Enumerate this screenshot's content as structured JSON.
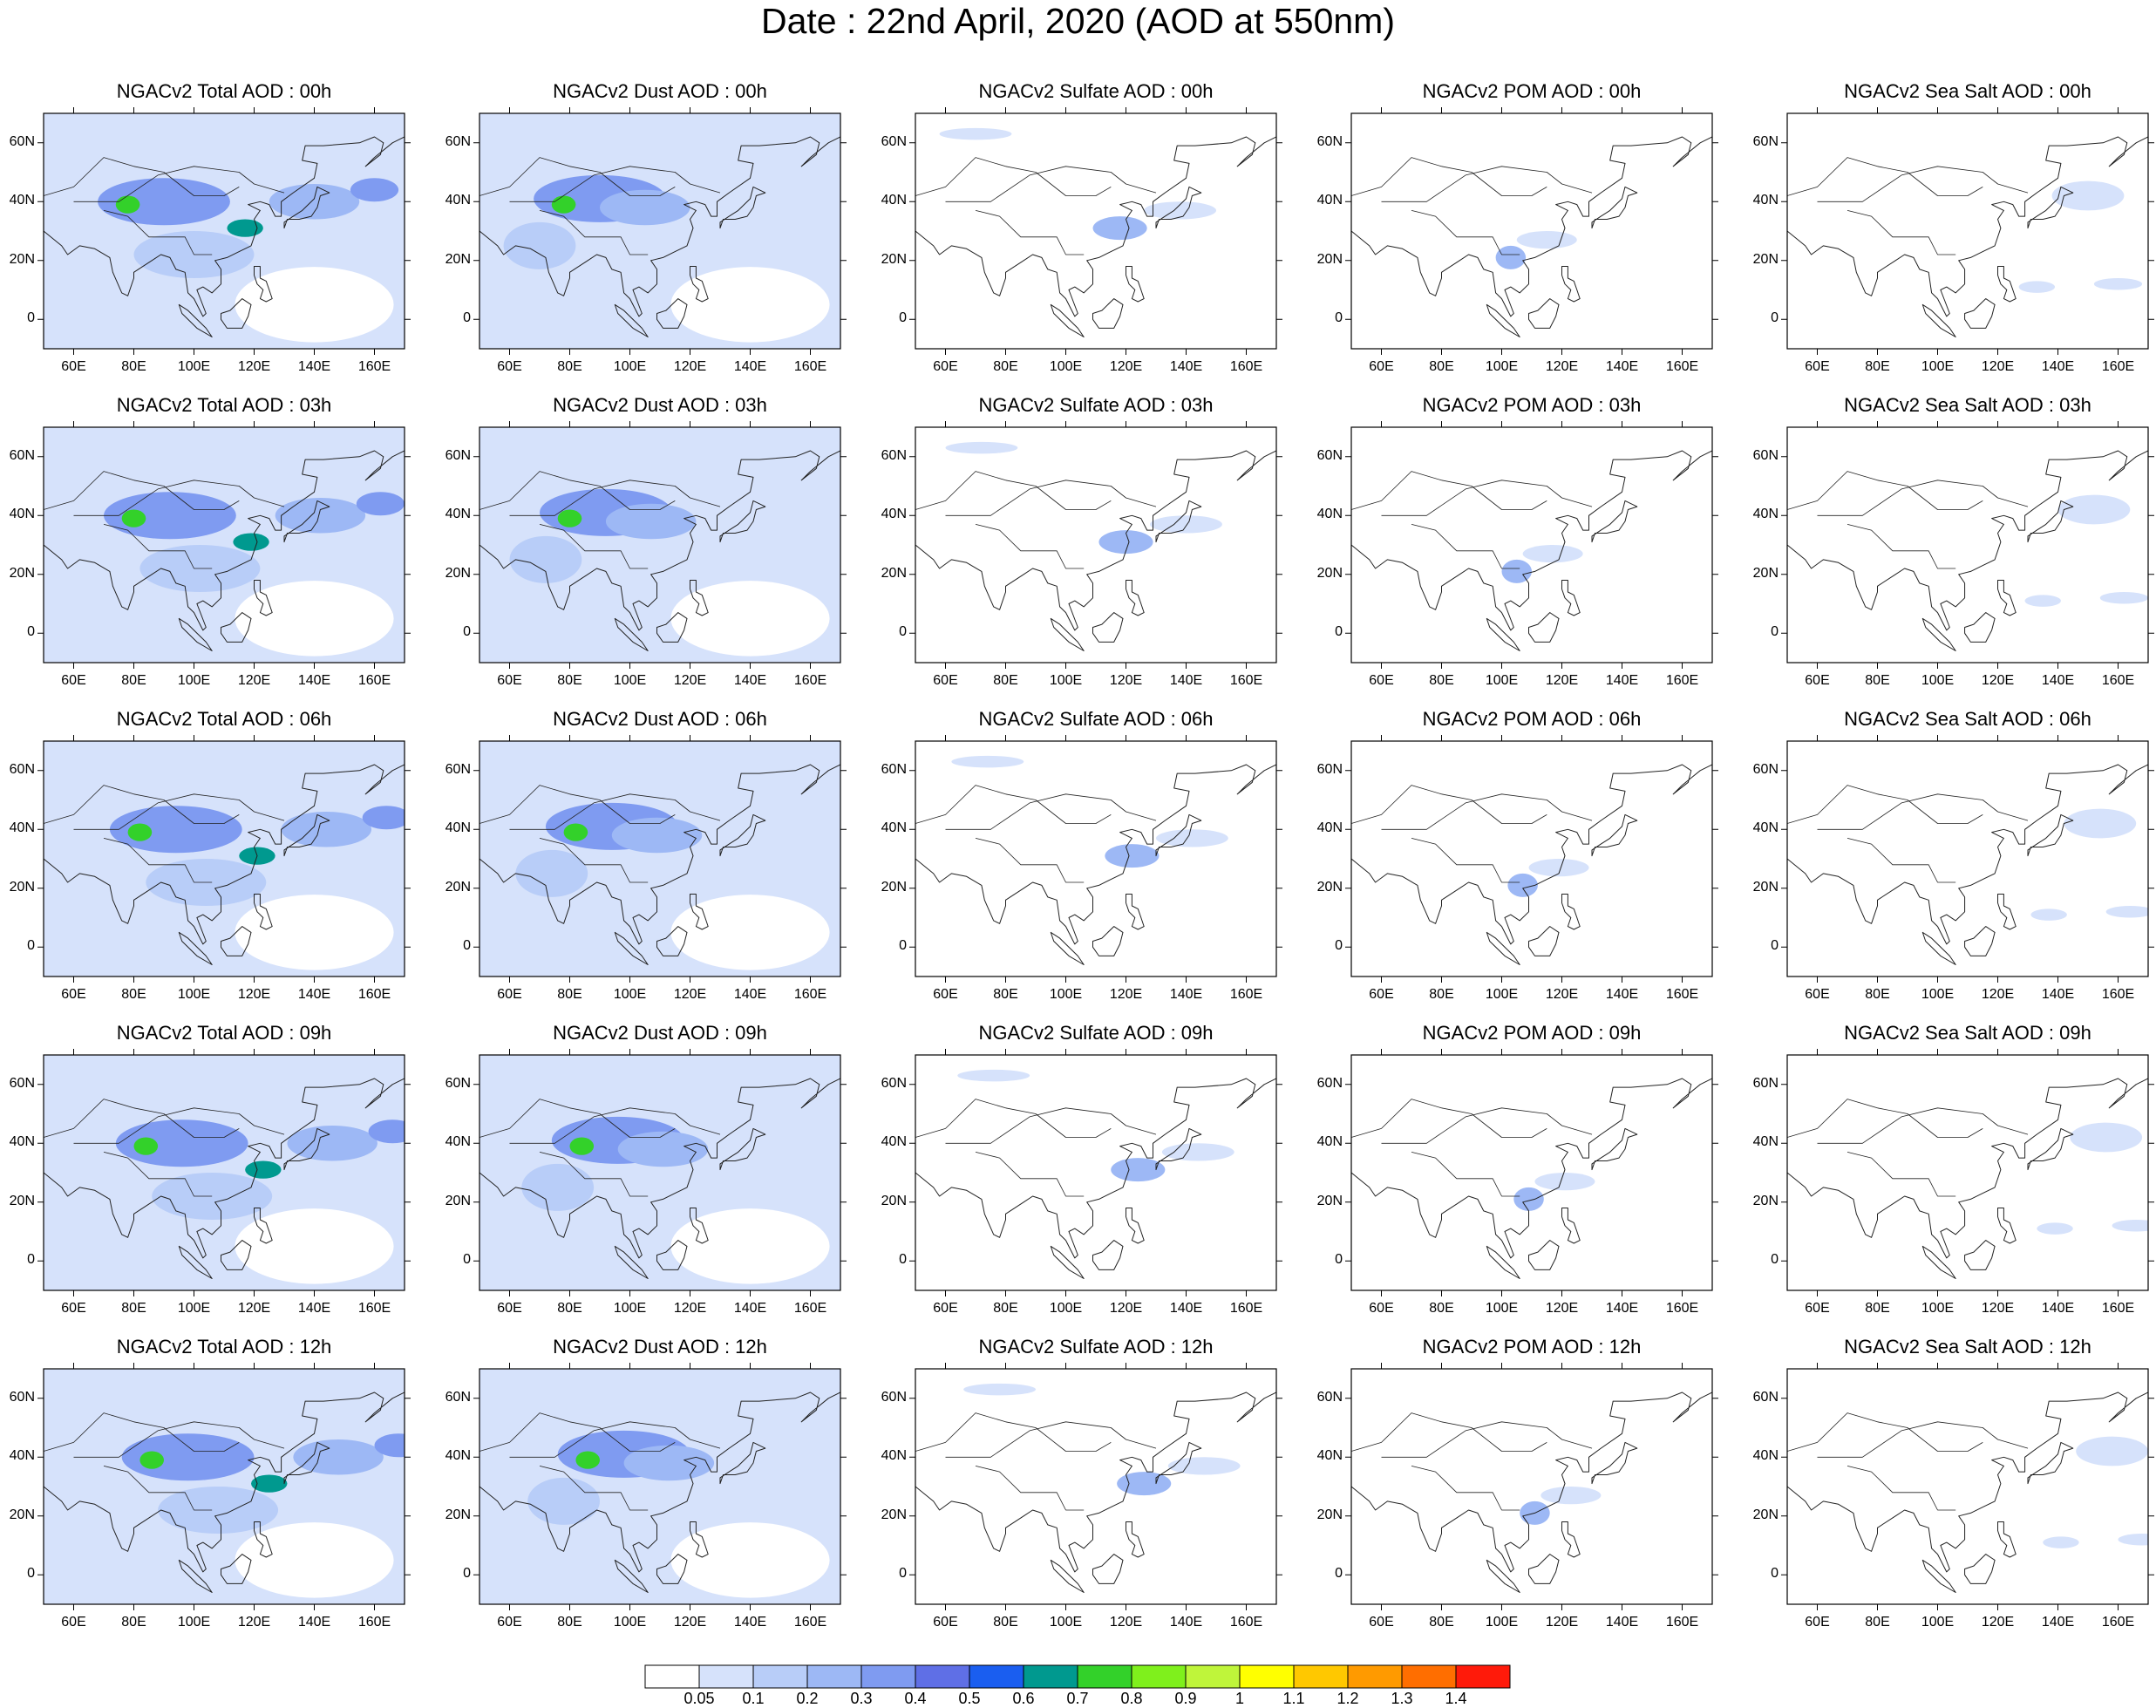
{
  "title": "Date : 22nd April, 2020 (AOD at 550nm)",
  "columns": [
    "Total",
    "Dust",
    "Sulfate",
    "POM",
    "Sea Salt"
  ],
  "rows": [
    "00h",
    "03h",
    "06h",
    "09h",
    "12h"
  ],
  "panel_titles": [
    [
      "NGACv2 Total AOD : 00h",
      "NGACv2 Dust AOD : 00h",
      "NGACv2 Sulfate AOD : 00h",
      "NGACv2 POM AOD : 00h",
      "NGACv2 Sea Salt AOD : 00h"
    ],
    [
      "NGACv2 Total AOD : 03h",
      "NGACv2 Dust AOD : 03h",
      "NGACv2 Sulfate AOD : 03h",
      "NGACv2 POM AOD : 03h",
      "NGACv2 Sea Salt AOD : 03h"
    ],
    [
      "NGACv2 Total AOD : 06h",
      "NGACv2 Dust AOD : 06h",
      "NGACv2 Sulfate AOD : 06h",
      "NGACv2 POM AOD : 06h",
      "NGACv2 Sea Salt AOD : 06h"
    ],
    [
      "NGACv2 Total AOD : 09h",
      "NGACv2 Dust AOD : 09h",
      "NGACv2 Sulfate AOD : 09h",
      "NGACv2 POM AOD : 09h",
      "NGACv2 Sea Salt  AOD : 09h"
    ],
    [
      "NGACv2 Total AOD  : 12h",
      "NGACv2 Dust AOD : 12h",
      "NGACv2 Sulfate AOD : 12h",
      "NGACv2 POM  AOD : 12h",
      "NGACv2 Sea Salt  AOD : 12h"
    ]
  ],
  "map_extent": {
    "lon": [
      50,
      170
    ],
    "lat": [
      -10,
      70
    ]
  },
  "lon_ticks": [
    60,
    80,
    100,
    120,
    140,
    160
  ],
  "lon_tick_labels": [
    "60E",
    "80E",
    "100E",
    "120E",
    "140E",
    "160E"
  ],
  "lat_ticks": [
    60,
    40,
    20,
    0
  ],
  "lat_tick_labels": [
    "60N",
    "40N",
    "20N",
    "0"
  ],
  "colorbar": {
    "labels": [
      "0.05",
      "0.1",
      "0.2",
      "0.3",
      "0.4",
      "0.5",
      "0.6",
      "0.7",
      "0.8",
      "0.9",
      "1",
      "1.1",
      "1.2",
      "1.3",
      "1.4"
    ],
    "colors": [
      "#ffffff",
      "#d6e2fb",
      "#b8cdf8",
      "#9db8f5",
      "#7f9bf1",
      "#5f6fe6",
      "#1a5ef0",
      "#00998f",
      "#33d12a",
      "#7ff01c",
      "#bff53a",
      "#ffff00",
      "#ffc800",
      "#ff9a00",
      "#ff6e00",
      "#ff1a0a"
    ]
  },
  "fields": {
    "Total": {
      "background_level": 1,
      "blobs": [
        {
          "lon": 90,
          "lat": 40,
          "rx": 22,
          "ry": 8,
          "level": 4
        },
        {
          "lon": 78,
          "lat": 39,
          "rx": 4,
          "ry": 3,
          "level": 8
        },
        {
          "lon": 117,
          "lat": 31,
          "rx": 6,
          "ry": 3,
          "level": 7
        },
        {
          "lon": 140,
          "lat": 40,
          "rx": 15,
          "ry": 6,
          "level": 3
        },
        {
          "lon": 100,
          "lat": 22,
          "rx": 20,
          "ry": 8,
          "level": 2
        },
        {
          "lon": 160,
          "lat": 44,
          "rx": 8,
          "ry": 4,
          "level": 4
        }
      ]
    },
    "Dust": {
      "background_level": 1,
      "blobs": [
        {
          "lon": 90,
          "lat": 41,
          "rx": 22,
          "ry": 8,
          "level": 4
        },
        {
          "lon": 78,
          "lat": 39,
          "rx": 4,
          "ry": 3,
          "level": 8
        },
        {
          "lon": 105,
          "lat": 38,
          "rx": 15,
          "ry": 6,
          "level": 3
        },
        {
          "lon": 70,
          "lat": 25,
          "rx": 12,
          "ry": 8,
          "level": 2
        }
      ]
    },
    "Sulfate": {
      "background_level": 0,
      "blobs": [
        {
          "lon": 118,
          "lat": 31,
          "rx": 9,
          "ry": 4,
          "level": 3
        },
        {
          "lon": 138,
          "lat": 37,
          "rx": 12,
          "ry": 3,
          "level": 1
        },
        {
          "lon": 70,
          "lat": 63,
          "rx": 12,
          "ry": 2,
          "level": 1
        }
      ]
    },
    "POM": {
      "background_level": 0,
      "blobs": [
        {
          "lon": 103,
          "lat": 21,
          "rx": 5,
          "ry": 4,
          "level": 3
        },
        {
          "lon": 115,
          "lat": 27,
          "rx": 10,
          "ry": 3,
          "level": 1
        }
      ]
    },
    "Sea Salt": {
      "background_level": 0,
      "blobs": [
        {
          "lon": 150,
          "lat": 42,
          "rx": 12,
          "ry": 5,
          "level": 1
        },
        {
          "lon": 160,
          "lat": 12,
          "rx": 8,
          "ry": 2,
          "level": 1
        },
        {
          "lon": 133,
          "lat": 11,
          "rx": 6,
          "ry": 2,
          "level": 1
        }
      ]
    }
  }
}
